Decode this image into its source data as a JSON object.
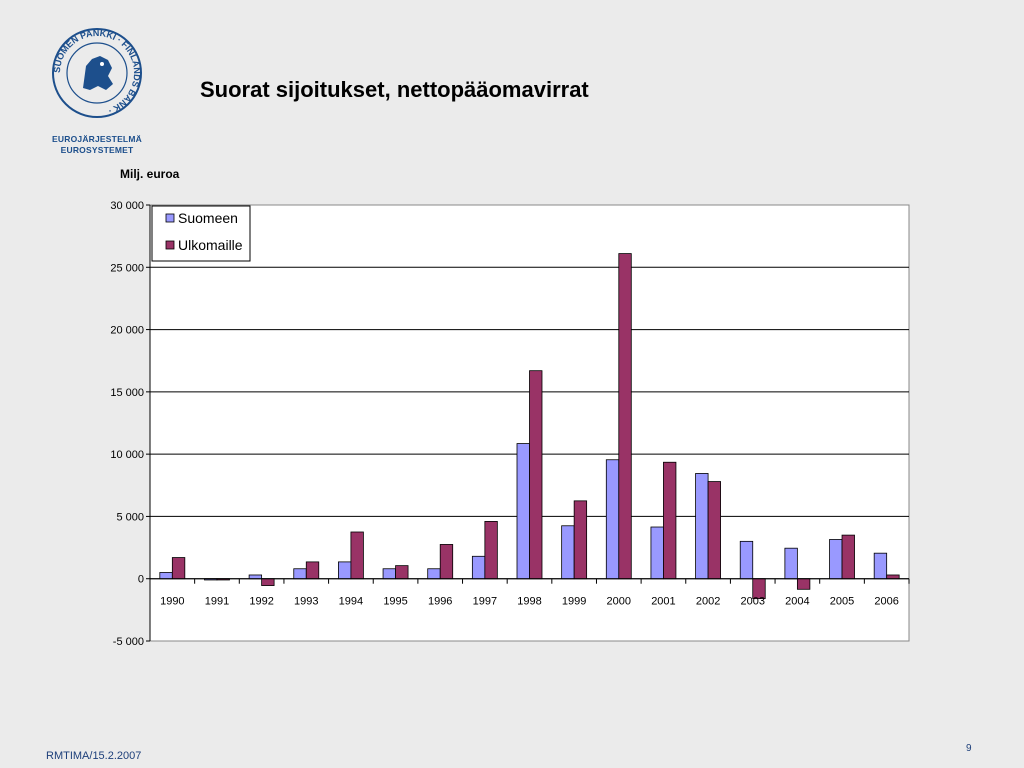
{
  "page": {
    "background": "#ebebeb",
    "title": "Suorat sijoitukset, nettopääomavirrat",
    "footer": "RMTIMA/15.2.2007",
    "page_number": "9"
  },
  "logo": {
    "seal_text": "SUOMEN PANKKI · FINLANDS BANK",
    "line1": "EUROJÄRJESTELMÄ",
    "line2": "EUROSYSTEMET",
    "color": "#1d4f8c"
  },
  "chart_data": {
    "type": "bar",
    "title": "",
    "ylabel": "Milj. euroa",
    "xlabel": "",
    "categories": [
      "1990",
      "1991",
      "1992",
      "1993",
      "1994",
      "1995",
      "1996",
      "1997",
      "1998",
      "1999",
      "2000",
      "2001",
      "2002",
      "2003",
      "2004",
      "2005",
      "2006"
    ],
    "series": [
      {
        "name": "Suomeen",
        "color": "#9999ff",
        "values": [
          500,
          -100,
          300,
          800,
          1350,
          800,
          800,
          1800,
          10850,
          4250,
          9550,
          4150,
          8450,
          3000,
          2450,
          3150,
          2050
        ]
      },
      {
        "name": "Ulkomaille",
        "color": "#993366",
        "values": [
          1700,
          -100,
          -550,
          1350,
          3750,
          1050,
          2750,
          4600,
          16700,
          6250,
          26100,
          9350,
          7800,
          -1600,
          -850,
          3500,
          300
        ]
      }
    ],
    "ylim": [
      -5000,
      30000
    ],
    "yticks": [
      -5000,
      0,
      5000,
      10000,
      15000,
      20000,
      25000,
      30000
    ],
    "ytick_labels": [
      "-5 000",
      "0",
      "5 000",
      "10 000",
      "15 000",
      "20 000",
      "25 000",
      "30 000"
    ],
    "grid": true,
    "legend": "top-left"
  }
}
